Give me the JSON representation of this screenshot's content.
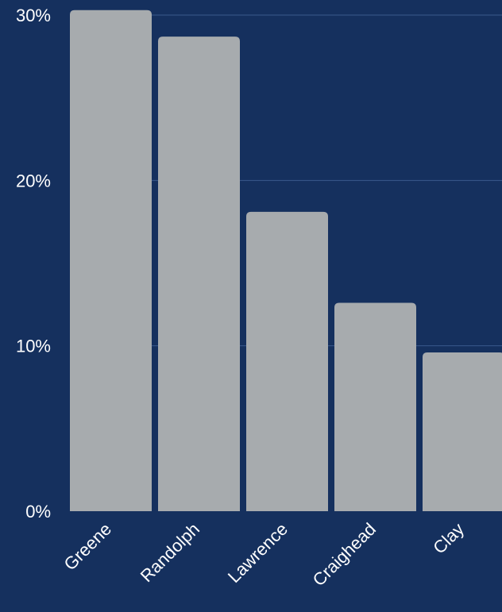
{
  "chart_data": {
    "type": "bar",
    "categories": [
      "Greene",
      "Randolph",
      "Lawrence",
      "Craighead",
      "Clay"
    ],
    "values": [
      30.3,
      28.7,
      18.1,
      12.6,
      9.6
    ],
    "yticks": [
      {
        "value": 0,
        "label": "0%"
      },
      {
        "value": 10,
        "label": "10%"
      },
      {
        "value": 20,
        "label": "20%"
      },
      {
        "value": 30,
        "label": "30%"
      }
    ],
    "ylim": [
      0,
      30
    ],
    "grid": true,
    "title": "",
    "xlabel": "",
    "ylabel": ""
  },
  "colors": {
    "background": "#15305e",
    "bar": "#a7abae",
    "gridline": "#3a5a8c",
    "text": "#ffffff"
  }
}
